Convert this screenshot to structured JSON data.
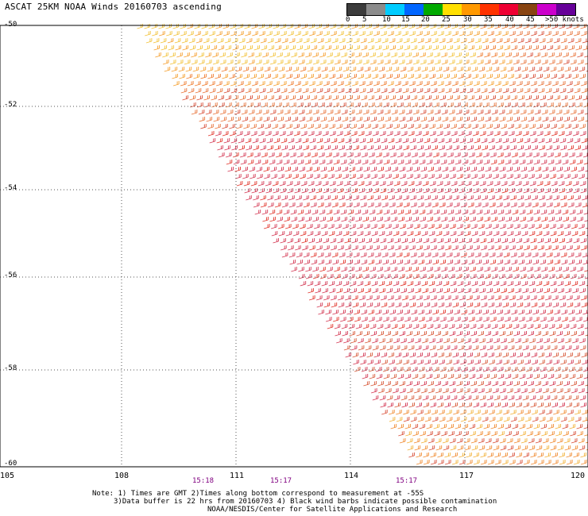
{
  "title": "ASCAT 25KM NOAA Winds 20160703 ascending",
  "legend": {
    "labels": [
      "0",
      "5",
      "10",
      "15",
      "20",
      "25",
      "30",
      "35",
      "40",
      "45",
      ">50 knots"
    ],
    "colors": [
      "#3c3c3c",
      "#8c8c8c",
      "#00ccff",
      "#0066ff",
      "#00aa00",
      "#ffe000",
      "#ff9900",
      "#ff3300",
      "#ee0033",
      "#884411",
      "#cc00cc",
      "#660099"
    ]
  },
  "axes": {
    "lat_ticks": [
      "-50",
      "-52",
      "-54",
      "-56",
      "-58",
      "-60"
    ],
    "lon_ticks": [
      "105",
      "108",
      "111",
      "114",
      "117",
      "120"
    ]
  },
  "times": [
    "15:18",
    "15:17",
    "15:17"
  ],
  "notes": [
    "Note: 1) Times are GMT 2)Times along bottom correspond to measurement at -55S",
    "3)Data buffer is 22 hrs from 20160703 4) Black wind barbs indicate possible contamination",
    "NOAA/NESDIS/Center for Satellite Applications and Research"
  ]
}
